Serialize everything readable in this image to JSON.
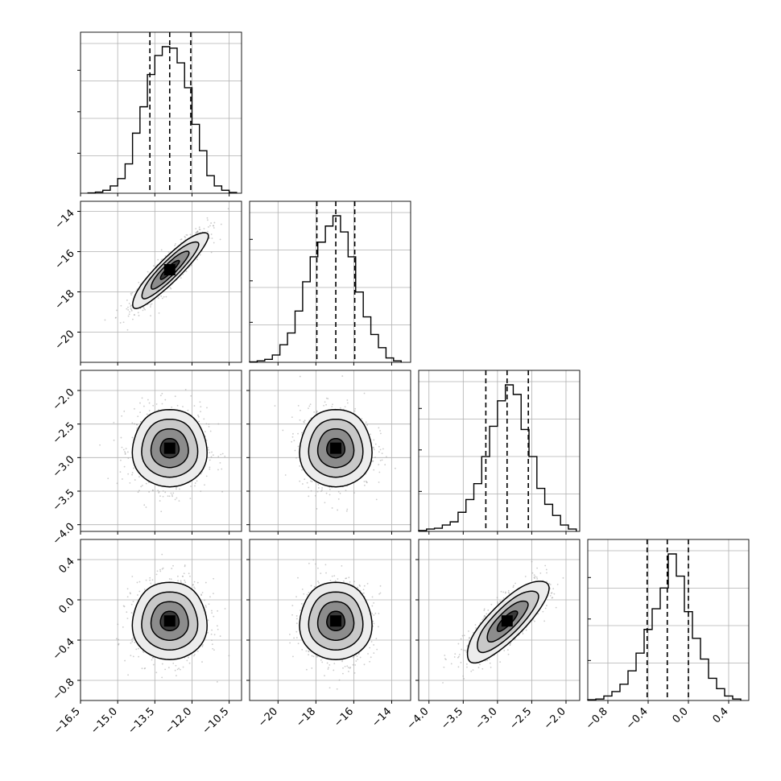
{
  "figure": {
    "kind": "corner-plot",
    "params": 4
  },
  "chart_data": {
    "type": "corner",
    "parameters": [
      {
        "id": "p0",
        "range": [
          -16.5,
          -10.0
        ],
        "ticks": [
          "-16.5",
          "-15.0",
          "-13.5",
          "-12.0",
          "-10.5"
        ],
        "quantiles": [
          -13.7,
          -12.9,
          -12.05
        ],
        "hist": [
          {
            "x0": -16.2,
            "x1": -15.9,
            "h": 0.002
          },
          {
            "x0": -15.9,
            "x1": -15.6,
            "h": 0.008
          },
          {
            "x0": -15.6,
            "x1": -15.3,
            "h": 0.02
          },
          {
            "x0": -15.3,
            "x1": -15.0,
            "h": 0.05
          },
          {
            "x0": -15.0,
            "x1": -14.7,
            "h": 0.1
          },
          {
            "x0": -14.7,
            "x1": -14.4,
            "h": 0.2
          },
          {
            "x0": -14.4,
            "x1": -14.1,
            "h": 0.41
          },
          {
            "x0": -14.1,
            "x1": -13.8,
            "h": 0.59
          },
          {
            "x0": -13.8,
            "x1": -13.5,
            "h": 0.81
          },
          {
            "x0": -13.5,
            "x1": -13.2,
            "h": 0.94
          },
          {
            "x0": -13.2,
            "x1": -12.9,
            "h": 1.0
          },
          {
            "x0": -12.9,
            "x1": -12.6,
            "h": 0.99
          },
          {
            "x0": -12.6,
            "x1": -12.3,
            "h": 0.89
          },
          {
            "x0": -12.3,
            "x1": -12.0,
            "h": 0.72
          },
          {
            "x0": -12.0,
            "x1": -11.7,
            "h": 0.47
          },
          {
            "x0": -11.7,
            "x1": -11.4,
            "h": 0.29
          },
          {
            "x0": -11.4,
            "x1": -11.1,
            "h": 0.12
          },
          {
            "x0": -11.1,
            "x1": -10.8,
            "h": 0.05
          },
          {
            "x0": -10.8,
            "x1": -10.5,
            "h": 0.02
          },
          {
            "x0": -10.5,
            "x1": -10.2,
            "h": 0.005
          }
        ]
      },
      {
        "id": "p1",
        "range": [
          -21.5,
          -13.0
        ],
        "ticks": [
          "-20",
          "-18",
          "-16",
          "-14"
        ],
        "quantiles": [
          -17.95,
          -16.95,
          -15.95
        ],
        "hist": [
          {
            "x0": -21.5,
            "x1": -21.1,
            "h": 0.003
          },
          {
            "x0": -21.1,
            "x1": -20.7,
            "h": 0.01
          },
          {
            "x0": -20.7,
            "x1": -20.3,
            "h": 0.02
          },
          {
            "x0": -20.3,
            "x1": -19.9,
            "h": 0.05
          },
          {
            "x0": -19.9,
            "x1": -19.5,
            "h": 0.12
          },
          {
            "x0": -19.5,
            "x1": -19.1,
            "h": 0.2
          },
          {
            "x0": -19.1,
            "x1": -18.7,
            "h": 0.35
          },
          {
            "x0": -18.7,
            "x1": -18.3,
            "h": 0.55
          },
          {
            "x0": -18.3,
            "x1": -17.9,
            "h": 0.72
          },
          {
            "x0": -17.9,
            "x1": -17.5,
            "h": 0.82
          },
          {
            "x0": -17.5,
            "x1": -17.1,
            "h": 0.93
          },
          {
            "x0": -17.1,
            "x1": -16.7,
            "h": 1.0
          },
          {
            "x0": -16.7,
            "x1": -16.3,
            "h": 0.89
          },
          {
            "x0": -16.3,
            "x1": -15.9,
            "h": 0.72
          },
          {
            "x0": -15.9,
            "x1": -15.5,
            "h": 0.48
          },
          {
            "x0": -15.5,
            "x1": -15.1,
            "h": 0.31
          },
          {
            "x0": -15.1,
            "x1": -14.7,
            "h": 0.19
          },
          {
            "x0": -14.7,
            "x1": -14.3,
            "h": 0.1
          },
          {
            "x0": -14.3,
            "x1": -13.9,
            "h": 0.03
          },
          {
            "x0": -13.9,
            "x1": -13.5,
            "h": 0.01
          }
        ]
      },
      {
        "id": "p2",
        "range": [
          -4.15,
          -1.8
        ],
        "ticks": [
          "-4.0",
          "-3.5",
          "-3.0",
          "-2.5",
          "-2.0"
        ],
        "quantiles": [
          -3.17,
          -2.86,
          -2.55
        ],
        "hist": [
          {
            "x0": -4.15,
            "x1": -4.035,
            "h": 0.005
          },
          {
            "x0": -4.035,
            "x1": -3.92,
            "h": 0.015
          },
          {
            "x0": -3.92,
            "x1": -3.805,
            "h": 0.02
          },
          {
            "x0": -3.805,
            "x1": -3.69,
            "h": 0.04
          },
          {
            "x0": -3.69,
            "x1": -3.575,
            "h": 0.06
          },
          {
            "x0": -3.575,
            "x1": -3.46,
            "h": 0.12
          },
          {
            "x0": -3.46,
            "x1": -3.345,
            "h": 0.2
          },
          {
            "x0": -3.345,
            "x1": -3.23,
            "h": 0.3
          },
          {
            "x0": -3.23,
            "x1": -3.115,
            "h": 0.47
          },
          {
            "x0": -3.115,
            "x1": -3.0,
            "h": 0.66
          },
          {
            "x0": -3.0,
            "x1": -2.885,
            "h": 0.82
          },
          {
            "x0": -2.885,
            "x1": -2.77,
            "h": 0.92
          },
          {
            "x0": -2.77,
            "x1": -2.655,
            "h": 0.86
          },
          {
            "x0": -2.655,
            "x1": -2.54,
            "h": 0.64
          },
          {
            "x0": -2.54,
            "x1": -2.425,
            "h": 0.47
          },
          {
            "x0": -2.425,
            "x1": -2.31,
            "h": 0.27
          },
          {
            "x0": -2.31,
            "x1": -2.195,
            "h": 0.17
          },
          {
            "x0": -2.195,
            "x1": -2.08,
            "h": 0.1
          },
          {
            "x0": -2.08,
            "x1": -1.965,
            "h": 0.04
          },
          {
            "x0": -1.965,
            "x1": -1.85,
            "h": 0.015
          }
        ]
      },
      {
        "id": "p3",
        "range": [
          -1.0,
          0.6
        ],
        "ticks": [
          "-0.8",
          "-0.4",
          "0.0",
          "0.4"
        ],
        "quantiles": [
          -0.41,
          -0.21,
          0.0
        ],
        "hist": [
          {
            "x0": -1.0,
            "x1": -0.92,
            "h": 0.005
          },
          {
            "x0": -0.92,
            "x1": -0.84,
            "h": 0.01
          },
          {
            "x0": -0.84,
            "x1": -0.76,
            "h": 0.03
          },
          {
            "x0": -0.76,
            "x1": -0.68,
            "h": 0.06
          },
          {
            "x0": -0.68,
            "x1": -0.6,
            "h": 0.11
          },
          {
            "x0": -0.6,
            "x1": -0.52,
            "h": 0.2
          },
          {
            "x0": -0.52,
            "x1": -0.44,
            "h": 0.32
          },
          {
            "x0": -0.44,
            "x1": -0.36,
            "h": 0.48
          },
          {
            "x0": -0.36,
            "x1": -0.28,
            "h": 0.62
          },
          {
            "x0": -0.28,
            "x1": -0.2,
            "h": 0.76
          },
          {
            "x0": -0.2,
            "x1": -0.12,
            "h": 0.99
          },
          {
            "x0": -0.12,
            "x1": -0.04,
            "h": 0.84
          },
          {
            "x0": -0.04,
            "x1": 0.04,
            "h": 0.6
          },
          {
            "x0": 0.04,
            "x1": 0.12,
            "h": 0.42
          },
          {
            "x0": 0.12,
            "x1": 0.2,
            "h": 0.28
          },
          {
            "x0": 0.2,
            "x1": 0.28,
            "h": 0.15
          },
          {
            "x0": 0.28,
            "x1": 0.36,
            "h": 0.08
          },
          {
            "x0": 0.36,
            "x1": 0.44,
            "h": 0.03
          },
          {
            "x0": 0.44,
            "x1": 0.52,
            "h": 0.01
          }
        ]
      }
    ],
    "row_range_overrides": {
      "p1": [
        -21.5,
        -13.5
      ],
      "p2": [
        -4.1,
        -1.7
      ],
      "p3": [
        -1.0,
        0.6
      ]
    },
    "row_ticks": {
      "p1": [
        "-14",
        "-16",
        "-18",
        "-20"
      ],
      "p2": [
        "-2.0",
        "-2.5",
        "-3.0",
        "-3.5",
        "-4.0"
      ],
      "p3": [
        "0.4",
        "0.0",
        "-0.4",
        "-0.8"
      ]
    },
    "pairs": [
      {
        "row": "p1",
        "col": "p0",
        "mean": [
          -12.9,
          -16.9
        ],
        "sd": [
          0.75,
          0.95
        ],
        "rho": 0.9
      },
      {
        "row": "p2",
        "col": "p0",
        "mean": [
          -12.9,
          -2.86
        ],
        "sd": [
          0.75,
          0.3
        ],
        "rho": 0.0
      },
      {
        "row": "p2",
        "col": "p1",
        "mean": [
          -16.95,
          -2.86
        ],
        "sd": [
          0.95,
          0.3
        ],
        "rho": 0.0
      },
      {
        "row": "p3",
        "col": "p0",
        "mean": [
          -12.9,
          -0.21
        ],
        "sd": [
          0.75,
          0.2
        ],
        "rho": 0.0
      },
      {
        "row": "p3",
        "col": "p1",
        "mean": [
          -16.95,
          -0.21
        ],
        "sd": [
          0.95,
          0.2
        ],
        "rho": 0.0
      },
      {
        "row": "p3",
        "col": "p2",
        "mean": [
          -2.86,
          -0.21
        ],
        "sd": [
          0.3,
          0.2
        ],
        "rho": 0.8
      }
    ],
    "contour_levels_sigma": [
      0.5,
      1.0,
      1.5,
      2.0
    ],
    "grid": true,
    "colors": {
      "line": "#000000",
      "grid": "#b0b0b0",
      "points": "#9a9a9a",
      "fill_dark": "#000000"
    }
  }
}
